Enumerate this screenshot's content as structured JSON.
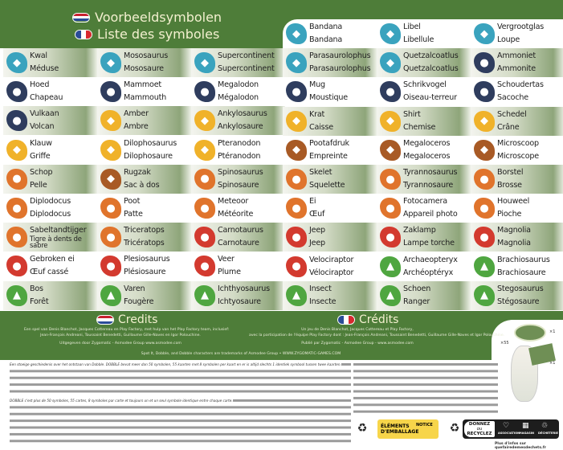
{
  "header": {
    "title_nl": "Voorbeeldsymbolen",
    "title_fr": "Liste des symboles"
  },
  "colors": {
    "green": "#4e7d39",
    "teal": "#3aa3be",
    "navy": "#2f3d5e",
    "yellow": "#f0b22a",
    "orange": "#e0742c",
    "brown": "#a85a25",
    "red": "#d33a2f",
    "lgreen": "#4fa640"
  },
  "left_rows": [
    [
      {
        "nl": "Kwal",
        "fr": "Méduse",
        "c": "teal",
        "icon": "jellyfish-icon"
      },
      {
        "nl": "Mososaurus",
        "fr": "Mososaure",
        "c": "teal",
        "icon": "mosasaurus-icon"
      },
      {
        "nl": "Supercontinent",
        "fr": "Supercontinent",
        "c": "teal",
        "icon": "globe-icon"
      }
    ],
    [
      {
        "nl": "Hoed",
        "fr": "Chapeau",
        "c": "navy",
        "icon": "hat-icon"
      },
      {
        "nl": "Mammoet",
        "fr": "Mammouth",
        "c": "navy",
        "icon": "mammoth-icon"
      },
      {
        "nl": "Megalodon",
        "fr": "Mégalodon",
        "c": "navy",
        "icon": "shark-icon"
      }
    ],
    [
      {
        "nl": "Vulkaan",
        "fr": "Volcan",
        "c": "navy",
        "icon": "volcano-icon"
      },
      {
        "nl": "Amber",
        "fr": "Ambre",
        "c": "yellow",
        "icon": "amber-icon"
      },
      {
        "nl": "Ankylosaurus",
        "fr": "Ankylosaure",
        "c": "yellow",
        "icon": "ankylosaurus-icon"
      }
    ],
    [
      {
        "nl": "Klauw",
        "fr": "Griffe",
        "c": "yellow",
        "icon": "claw-icon"
      },
      {
        "nl": "Dilophosaurus",
        "fr": "Dilophosaure",
        "c": "yellow",
        "icon": "dilophosaurus-icon"
      },
      {
        "nl": "Pteranodon",
        "fr": "Ptéranodon",
        "c": "yellow",
        "icon": "pteranodon-icon"
      }
    ],
    [
      {
        "nl": "Schop",
        "fr": "Pelle",
        "c": "orange",
        "icon": "shovel-icon"
      },
      {
        "nl": "Rugzak",
        "fr": "Sac à dos",
        "c": "brown",
        "icon": "backpack-icon"
      },
      {
        "nl": "Spinosaurus",
        "fr": "Spinosaure",
        "c": "orange",
        "icon": "spinosaurus-icon"
      }
    ],
    [
      {
        "nl": "Diplodocus",
        "fr": "Diplodocus",
        "c": "orange",
        "icon": "diplodocus-icon"
      },
      {
        "nl": "Poot",
        "fr": "Patte",
        "c": "orange",
        "icon": "foot-icon"
      },
      {
        "nl": "Meteoor",
        "fr": "Météorite",
        "c": "orange",
        "icon": "meteor-icon"
      }
    ],
    [
      {
        "nl": "Sabeltandtijger",
        "fr": "Tigre à dents de sabre",
        "c": "orange",
        "icon": "sabertooth-icon"
      },
      {
        "nl": "Triceratops",
        "fr": "Tricératops",
        "c": "orange",
        "icon": "triceratops-icon"
      },
      {
        "nl": "Carnotaurus",
        "fr": "Carnotaure",
        "c": "red",
        "icon": "carnotaurus-icon"
      }
    ],
    [
      {
        "nl": "Gebroken ei",
        "fr": "Œuf cassé",
        "c": "red",
        "icon": "broken-egg-icon"
      },
      {
        "nl": "Plesiosaurus",
        "fr": "Plésiosaure",
        "c": "red",
        "icon": "plesiosaurus-icon"
      },
      {
        "nl": "Veer",
        "fr": "Plume",
        "c": "red",
        "icon": "feather-icon"
      }
    ],
    [
      {
        "nl": "Bos",
        "fr": "Forêt",
        "c": "lgreen",
        "icon": "forest-icon"
      },
      {
        "nl": "Varen",
        "fr": "Fougère",
        "c": "lgreen",
        "icon": "fern-icon"
      },
      {
        "nl": "Ichthyosaurus",
        "fr": "Ichtyosaure",
        "c": "lgreen",
        "icon": "ichthyosaurus-icon"
      }
    ]
  ],
  "right_rows": [
    [
      {
        "nl": "Bandana",
        "fr": "Bandana",
        "c": "teal",
        "icon": "bandana-icon"
      },
      {
        "nl": "Libel",
        "fr": "Libellule",
        "c": "teal",
        "icon": "dragonfly-icon"
      },
      {
        "nl": "Vergrootglas",
        "fr": "Loupe",
        "c": "teal",
        "icon": "magnifier-icon"
      }
    ],
    [
      {
        "nl": "Parasaurolophus",
        "fr": "Parasaurolophus",
        "c": "teal",
        "icon": "parasaurolophus-icon"
      },
      {
        "nl": "Quetzalcoatlus",
        "fr": "Quetzalcoatlus",
        "c": "teal",
        "icon": "quetzalcoatlus-icon"
      },
      {
        "nl": "Ammoniet",
        "fr": "Ammonite",
        "c": "navy",
        "icon": "ammonite-icon"
      }
    ],
    [
      {
        "nl": "Mug",
        "fr": "Moustique",
        "c": "navy",
        "icon": "mosquito-icon"
      },
      {
        "nl": "Schrikvogel",
        "fr": "Oiseau-terreur",
        "c": "navy",
        "icon": "terror-bird-icon"
      },
      {
        "nl": "Schoudertas",
        "fr": "Sacoche",
        "c": "navy",
        "icon": "satchel-icon"
      }
    ],
    [
      {
        "nl": "Krat",
        "fr": "Caisse",
        "c": "yellow",
        "icon": "crate-icon"
      },
      {
        "nl": "Shirt",
        "fr": "Chemise",
        "c": "yellow",
        "icon": "shirt-icon"
      },
      {
        "nl": "Schedel",
        "fr": "Crâne",
        "c": "yellow",
        "icon": "skull-icon"
      }
    ],
    [
      {
        "nl": "Pootafdruk",
        "fr": "Empreinte",
        "c": "brown",
        "icon": "footprint-icon"
      },
      {
        "nl": "Megaloceros",
        "fr": "Megaloceros",
        "c": "brown",
        "icon": "megaloceros-icon"
      },
      {
        "nl": "Microscoop",
        "fr": "Microscope",
        "c": "brown",
        "icon": "microscope-icon"
      }
    ],
    [
      {
        "nl": "Skelet",
        "fr": "Squelette",
        "c": "orange",
        "icon": "skeleton-icon"
      },
      {
        "nl": "Tyrannosaurus",
        "fr": "Tyrannosaure",
        "c": "orange",
        "icon": "tyrannosaurus-icon"
      },
      {
        "nl": "Borstel",
        "fr": "Brosse",
        "c": "orange",
        "icon": "brush-icon"
      }
    ],
    [
      {
        "nl": "Ei",
        "fr": "Œuf",
        "c": "orange",
        "icon": "egg-icon"
      },
      {
        "nl": "Fotocamera",
        "fr": "Appareil photo",
        "c": "orange",
        "icon": "camera-icon"
      },
      {
        "nl": "Houweel",
        "fr": "Pioche",
        "c": "orange",
        "icon": "pickaxe-icon"
      }
    ],
    [
      {
        "nl": "Jeep",
        "fr": "Jeep",
        "c": "red",
        "icon": "jeep-icon"
      },
      {
        "nl": "Zaklamp",
        "fr": "Lampe torche",
        "c": "red",
        "icon": "flashlight-icon"
      },
      {
        "nl": "Magnolia",
        "fr": "Magnolia",
        "c": "red",
        "icon": "flower-icon"
      }
    ],
    [
      {
        "nl": "Velociraptor",
        "fr": "Vélociraptor",
        "c": "red",
        "icon": "velociraptor-icon"
      },
      {
        "nl": "Archaeopteryx",
        "fr": "Archéoptéryx",
        "c": "lgreen",
        "icon": "archaeopteryx-icon"
      },
      {
        "nl": "Brachiosaurus",
        "fr": "Brachiosaure",
        "c": "lgreen",
        "icon": "brachiosaurus-icon"
      }
    ],
    [
      {
        "nl": "Insect",
        "fr": "Insecte",
        "c": "lgreen",
        "icon": "insect-icon"
      },
      {
        "nl": "Schoen",
        "fr": "Ranger",
        "c": "lgreen",
        "icon": "boot-icon"
      },
      {
        "nl": "Stegosaurus",
        "fr": "Stégosaure",
        "c": "lgreen",
        "icon": "stegosaurus-icon"
      }
    ]
  ],
  "credits": {
    "nl_title": "Credits",
    "nl_line1": "Een spel van Denis Blanchot, Jacques Cottereau en Play Factory, met hulp van het Play Factory team, inclusief:",
    "nl_line2": "Jean-François Andreani, Toussaint Benedetti, Guillaume Gille-Naves en Igor Polouchine.",
    "nl_line3": "Uitgegeven door Zygomatic - Asmodee Group www.asmodee.com",
    "fr_title": "Crédits",
    "fr_line1": "Un jeu de Denis Blanchot, Jacques Cottereau et Play Factory,",
    "fr_line2": "avec la participation de l'équipe Play Factory dont : Jean-François Andreani, Toussaint Benedetti, Guillaume Gille-Naves et Igor Polouchine.",
    "fr_line3": "Publié par Zygomatic - Asmodee Group - www.asmodee.com",
    "trademark": "Spot It, Dobble, and Dobble characters are trademarks of Asmodee Group • WWW.ZYGOMATIC-GAMES.COM"
  },
  "product": {
    "count_cards": "×55",
    "count_tin": "×1",
    "count_insert": "×1"
  },
  "fineprint": {
    "nl": "Een stoeige geschiedenis over het ontstaan van Dobble. DOBBLE bevat meer dan 50 symbolen, 55 kaarten met 8 symbolen per kaart en er is altijd slechts 1 identiek symbool tussen twee kaarten.",
    "fr": "DOBBLE c'est plus de 50 symboles, 55 cartes, 8 symboles par carte et toujours un et un seul symbole identique entre chaque carte."
  },
  "recycling": {
    "packaging_l1": "ÉLÉMENTS",
    "packaging_l2": "D'EMBALLAGE",
    "packaging_plus": "+",
    "packaging_notice": "NOTICE",
    "donate_l1": "DONNEZ",
    "donate_or": "ou",
    "donate_l2": "RECYCLEZ",
    "opt1": "ASSOCIATION",
    "opt2": "MAGASIN",
    "opt3": "DÉCHETERIE",
    "sep": "ou",
    "more_info": "Plus d'infos sur quefairedemesdechets.fr"
  }
}
